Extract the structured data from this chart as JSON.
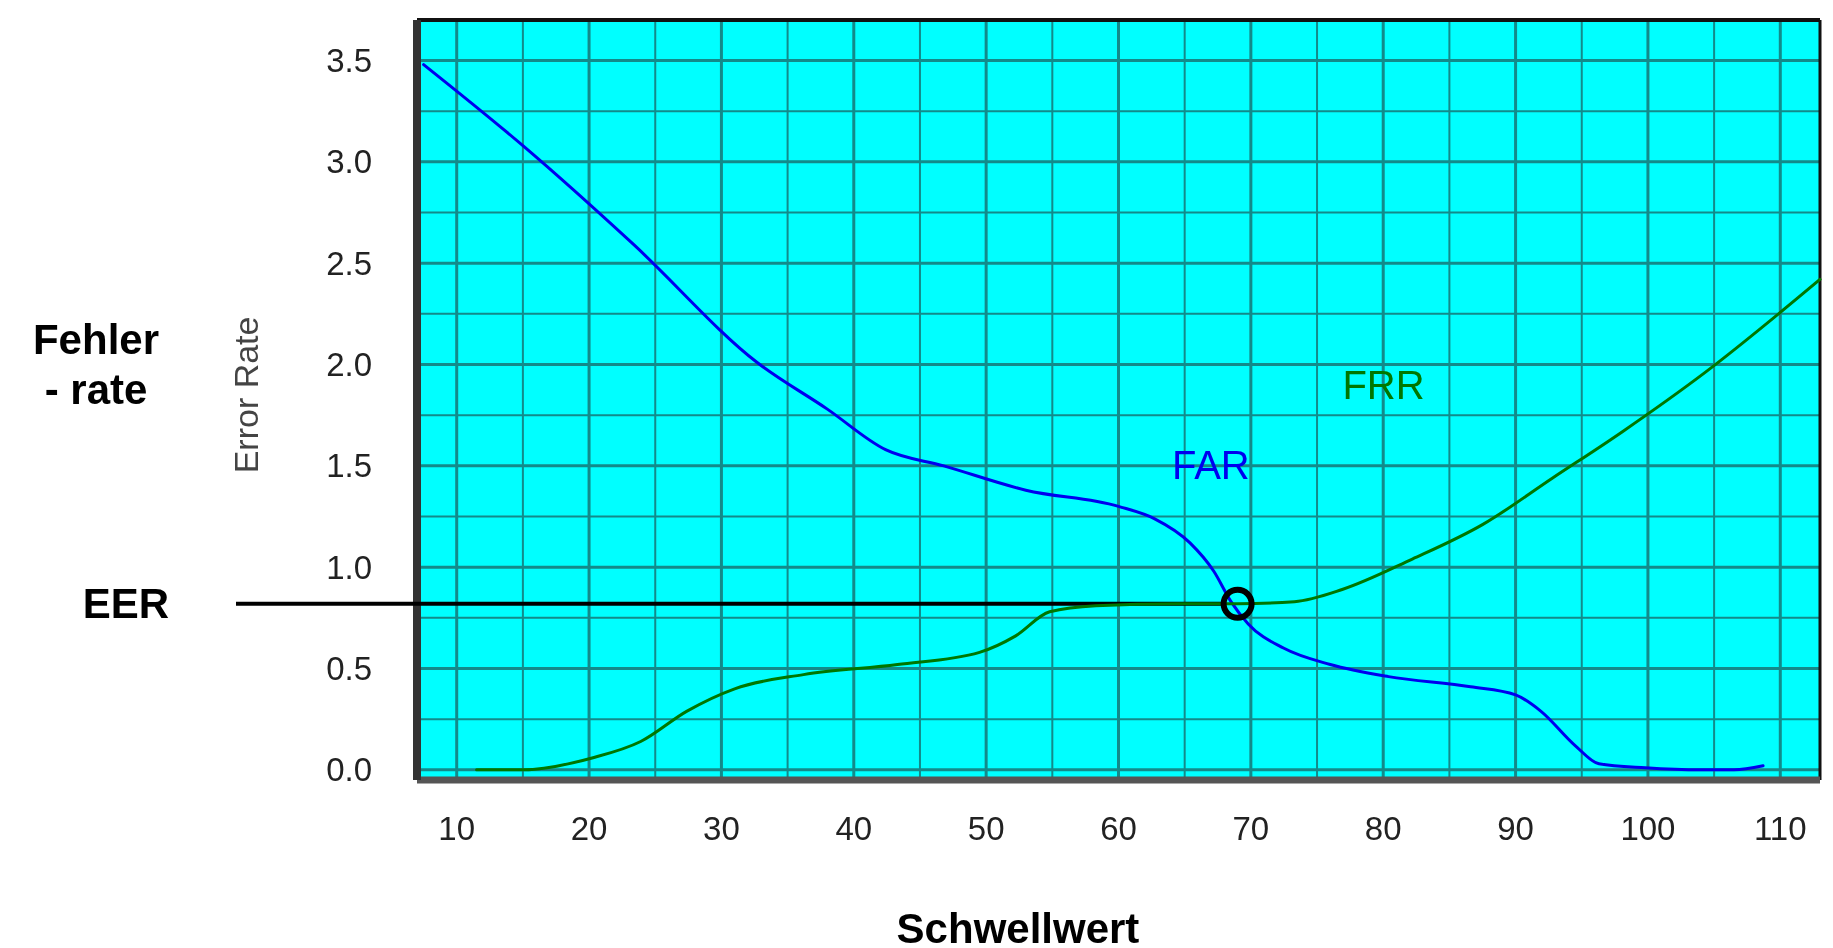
{
  "chart_data": {
    "type": "line",
    "xlabel": "Schwellwert",
    "ylabel": "Error Rate",
    "annotations": [
      "Fehler\n- rate"
    ],
    "xlim": [
      7,
      113
    ],
    "ylim": [
      -0.05,
      3.7
    ],
    "xticks": [
      10,
      {
        "value": 15,
        "label": null
      },
      20,
      {
        "value": 25,
        "label": null
      },
      30,
      {
        "value": 35,
        "label": null
      },
      40,
      {
        "value": 45,
        "label": null
      },
      50,
      {
        "value": 55,
        "label": null
      },
      60,
      {
        "value": 65,
        "label": null
      },
      70,
      {
        "value": 75,
        "label": null
      },
      80,
      {
        "value": 85,
        "label": null
      },
      90,
      {
        "value": 95,
        "label": null
      },
      100,
      {
        "value": 105,
        "label": null
      },
      110
    ],
    "yticks": [
      {
        "value": 0,
        "label": "0.0"
      },
      {
        "value": 0.25,
        "label": null
      },
      {
        "value": 0.5,
        "label": "0.5"
      },
      {
        "value": 0.75,
        "label": null
      },
      {
        "value": 1,
        "label": "1.0"
      },
      {
        "value": 1.25,
        "label": null
      },
      {
        "value": 1.5,
        "label": "1.5"
      },
      {
        "value": 1.75,
        "label": null
      },
      {
        "value": 2,
        "label": "2.0"
      },
      {
        "value": 2.25,
        "label": null
      },
      {
        "value": 2.5,
        "label": "2.5"
      },
      {
        "value": 2.75,
        "label": null
      },
      {
        "value": 3,
        "label": "3.0"
      },
      {
        "value": 3.25,
        "label": null
      },
      {
        "value": 3.5,
        "label": "3.5"
      }
    ],
    "grid": true,
    "ref_lines": [
      {
        "axis": "y",
        "value": 0.82,
        "label": "EER",
        "color": "#000000"
      }
    ],
    "series": [
      {
        "name": "FAR",
        "color": "#0000ee",
        "x": [
          7.5,
          15,
          23.4,
          32.7,
          38,
          42.4,
          46.8,
          53,
          60,
          62.7,
          65.4,
          67.2,
          68.5,
          69.8,
          72.5,
          76,
          80.4,
          86.6,
          90,
          91.9,
          94.5,
          96.3,
          99.8,
          104,
          106.5,
          108.7
        ],
        "values": [
          3.48,
          3.08,
          2.59,
          2.01,
          1.78,
          1.58,
          1.5,
          1.38,
          1.3,
          1.24,
          1.12,
          0.98,
          0.83,
          0.72,
          0.6,
          0.52,
          0.46,
          0.41,
          0.37,
          0.29,
          0.12,
          0.03,
          0.01,
          0,
          0,
          0.02
        ]
      },
      {
        "name": "FRR",
        "color": "#007700",
        "x": [
          11.5,
          15,
          20.3,
          23.9,
          27.4,
          31,
          36.2,
          43.3,
          49.5,
          52.2,
          54.8,
          58.3,
          64.5,
          69,
          73.3,
          76.9,
          82.2,
          87.5,
          92.8,
          98.1,
          104.3,
          113
        ],
        "values": [
          0,
          0,
          0.06,
          0.14,
          0.29,
          0.4,
          0.47,
          0.52,
          0.58,
          0.66,
          0.78,
          0.81,
          0.82,
          0.82,
          0.83,
          0.89,
          1.04,
          1.21,
          1.44,
          1.67,
          1.96,
          2.42
        ]
      },
      {
        "type": "scatter",
        "color": "#000000",
        "marker": "circle",
        "x": [
          69
        ],
        "values": [
          0.82
        ]
      }
    ]
  }
}
